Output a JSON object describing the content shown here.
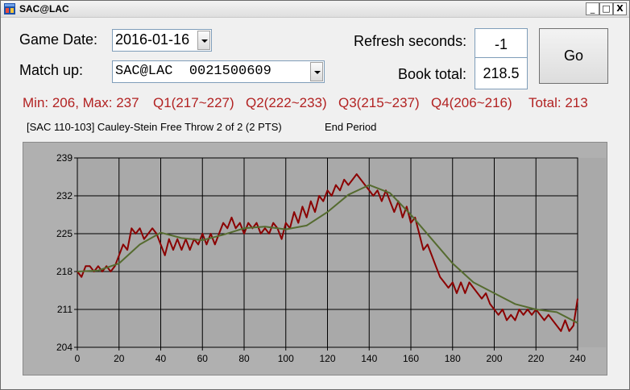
{
  "window": {
    "title": "SAC@LAC",
    "min_glyph": "_",
    "max_glyph": "□",
    "close_glyph": "X"
  },
  "form": {
    "game_date_label": "Game Date:",
    "game_date_value": "2016-01-16",
    "match_up_label": "Match up:",
    "match_up_value": "SAC@LAC  0021500609",
    "refresh_label": "Refresh seconds:",
    "refresh_value": "-1",
    "book_total_label": "Book total:",
    "book_total_value": "218.5",
    "go_label": "Go"
  },
  "stats": {
    "minmax": "Min: 206, Max: 237",
    "q1": "Q1(217~227)",
    "q2": "Q2(222~233)",
    "q3": "Q3(215~237)",
    "q4": "Q4(206~216)",
    "total": "Total: 213"
  },
  "status": {
    "play": "[SAC 110-103] Cauley-Stein Free Throw 2 of 2 (2 PTS)",
    "period": "End Period"
  },
  "colors": {
    "projection": "#8b0000",
    "moving_avg": "#556b2f",
    "stats_text": "#b22222",
    "plot_bg": "#a9a9a9"
  },
  "chart_data": {
    "type": "line",
    "xlim": [
      0,
      240
    ],
    "ylim": [
      204,
      239
    ],
    "x_ticks": [
      0,
      20,
      40,
      60,
      80,
      100,
      120,
      140,
      160,
      180,
      200,
      220,
      240
    ],
    "y_ticks": [
      204,
      211,
      218,
      225,
      232,
      239
    ],
    "grid": true,
    "series": [
      {
        "points": [
          [
            0,
            218
          ],
          [
            2,
            217
          ],
          [
            4,
            219
          ],
          [
            6,
            219
          ],
          [
            8,
            218
          ],
          [
            10,
            219
          ],
          [
            12,
            218
          ],
          [
            14,
            219
          ],
          [
            16,
            218
          ],
          [
            18,
            219
          ],
          [
            20,
            221
          ],
          [
            22,
            223
          ],
          [
            24,
            222
          ],
          [
            26,
            226
          ],
          [
            28,
            225
          ],
          [
            30,
            226
          ],
          [
            32,
            224
          ],
          [
            34,
            225
          ],
          [
            36,
            226
          ],
          [
            38,
            225
          ],
          [
            40,
            223
          ],
          [
            42,
            221
          ],
          [
            44,
            224
          ],
          [
            46,
            222
          ],
          [
            48,
            224
          ],
          [
            50,
            222
          ],
          [
            52,
            224
          ],
          [
            54,
            222
          ],
          [
            56,
            224
          ],
          [
            58,
            223
          ],
          [
            60,
            225
          ],
          [
            62,
            223
          ],
          [
            64,
            225
          ],
          [
            66,
            223
          ],
          [
            68,
            225
          ],
          [
            70,
            227
          ],
          [
            72,
            226
          ],
          [
            74,
            228
          ],
          [
            76,
            226
          ],
          [
            78,
            227
          ],
          [
            80,
            225
          ],
          [
            82,
            227
          ],
          [
            84,
            226
          ],
          [
            86,
            227
          ],
          [
            88,
            225
          ],
          [
            90,
            226
          ],
          [
            92,
            225
          ],
          [
            94,
            227
          ],
          [
            96,
            226
          ],
          [
            98,
            224
          ],
          [
            100,
            227
          ],
          [
            102,
            226
          ],
          [
            104,
            229
          ],
          [
            106,
            227
          ],
          [
            108,
            230
          ],
          [
            110,
            228
          ],
          [
            112,
            231
          ],
          [
            114,
            229
          ],
          [
            116,
            232
          ],
          [
            118,
            231
          ],
          [
            120,
            233
          ],
          [
            122,
            232
          ],
          [
            124,
            234
          ],
          [
            126,
            233
          ],
          [
            128,
            235
          ],
          [
            130,
            234
          ],
          [
            132,
            235
          ],
          [
            134,
            236
          ],
          [
            136,
            235
          ],
          [
            138,
            234
          ],
          [
            140,
            233
          ],
          [
            142,
            232
          ],
          [
            144,
            233
          ],
          [
            146,
            231
          ],
          [
            148,
            233
          ],
          [
            150,
            231
          ],
          [
            152,
            229
          ],
          [
            154,
            231
          ],
          [
            156,
            228
          ],
          [
            158,
            230
          ],
          [
            160,
            227
          ],
          [
            162,
            228
          ],
          [
            164,
            225
          ],
          [
            166,
            222
          ],
          [
            168,
            223
          ],
          [
            170,
            221
          ],
          [
            172,
            219
          ],
          [
            174,
            217
          ],
          [
            176,
            216
          ],
          [
            178,
            215
          ],
          [
            180,
            216
          ],
          [
            182,
            214
          ],
          [
            184,
            216
          ],
          [
            186,
            214
          ],
          [
            188,
            216
          ],
          [
            190,
            215
          ],
          [
            192,
            214
          ],
          [
            194,
            213
          ],
          [
            196,
            214
          ],
          [
            198,
            212
          ],
          [
            200,
            211
          ],
          [
            202,
            210
          ],
          [
            204,
            211
          ],
          [
            206,
            209
          ],
          [
            208,
            210
          ],
          [
            210,
            209
          ],
          [
            212,
            211
          ],
          [
            214,
            210
          ],
          [
            216,
            211
          ],
          [
            218,
            210
          ],
          [
            220,
            211
          ],
          [
            222,
            210
          ],
          [
            224,
            209
          ],
          [
            226,
            210
          ],
          [
            228,
            209
          ],
          [
            230,
            208
          ],
          [
            232,
            207
          ],
          [
            234,
            209
          ],
          [
            236,
            207
          ],
          [
            238,
            208
          ],
          [
            240,
            213
          ]
        ]
      },
      {
        "points": [
          [
            0,
            218
          ],
          [
            10,
            218.2
          ],
          [
            20,
            219.5
          ],
          [
            30,
            223
          ],
          [
            40,
            225.2
          ],
          [
            50,
            224.2
          ],
          [
            60,
            223.8
          ],
          [
            70,
            224.8
          ],
          [
            80,
            226
          ],
          [
            90,
            226.3
          ],
          [
            100,
            225.8
          ],
          [
            110,
            226.5
          ],
          [
            120,
            229
          ],
          [
            130,
            232.2
          ],
          [
            140,
            234
          ],
          [
            150,
            232.5
          ],
          [
            160,
            228.5
          ],
          [
            170,
            224
          ],
          [
            180,
            219.5
          ],
          [
            190,
            216
          ],
          [
            200,
            214
          ],
          [
            210,
            212
          ],
          [
            220,
            211
          ],
          [
            230,
            210.5
          ],
          [
            240,
            208.5
          ]
        ]
      }
    ]
  }
}
